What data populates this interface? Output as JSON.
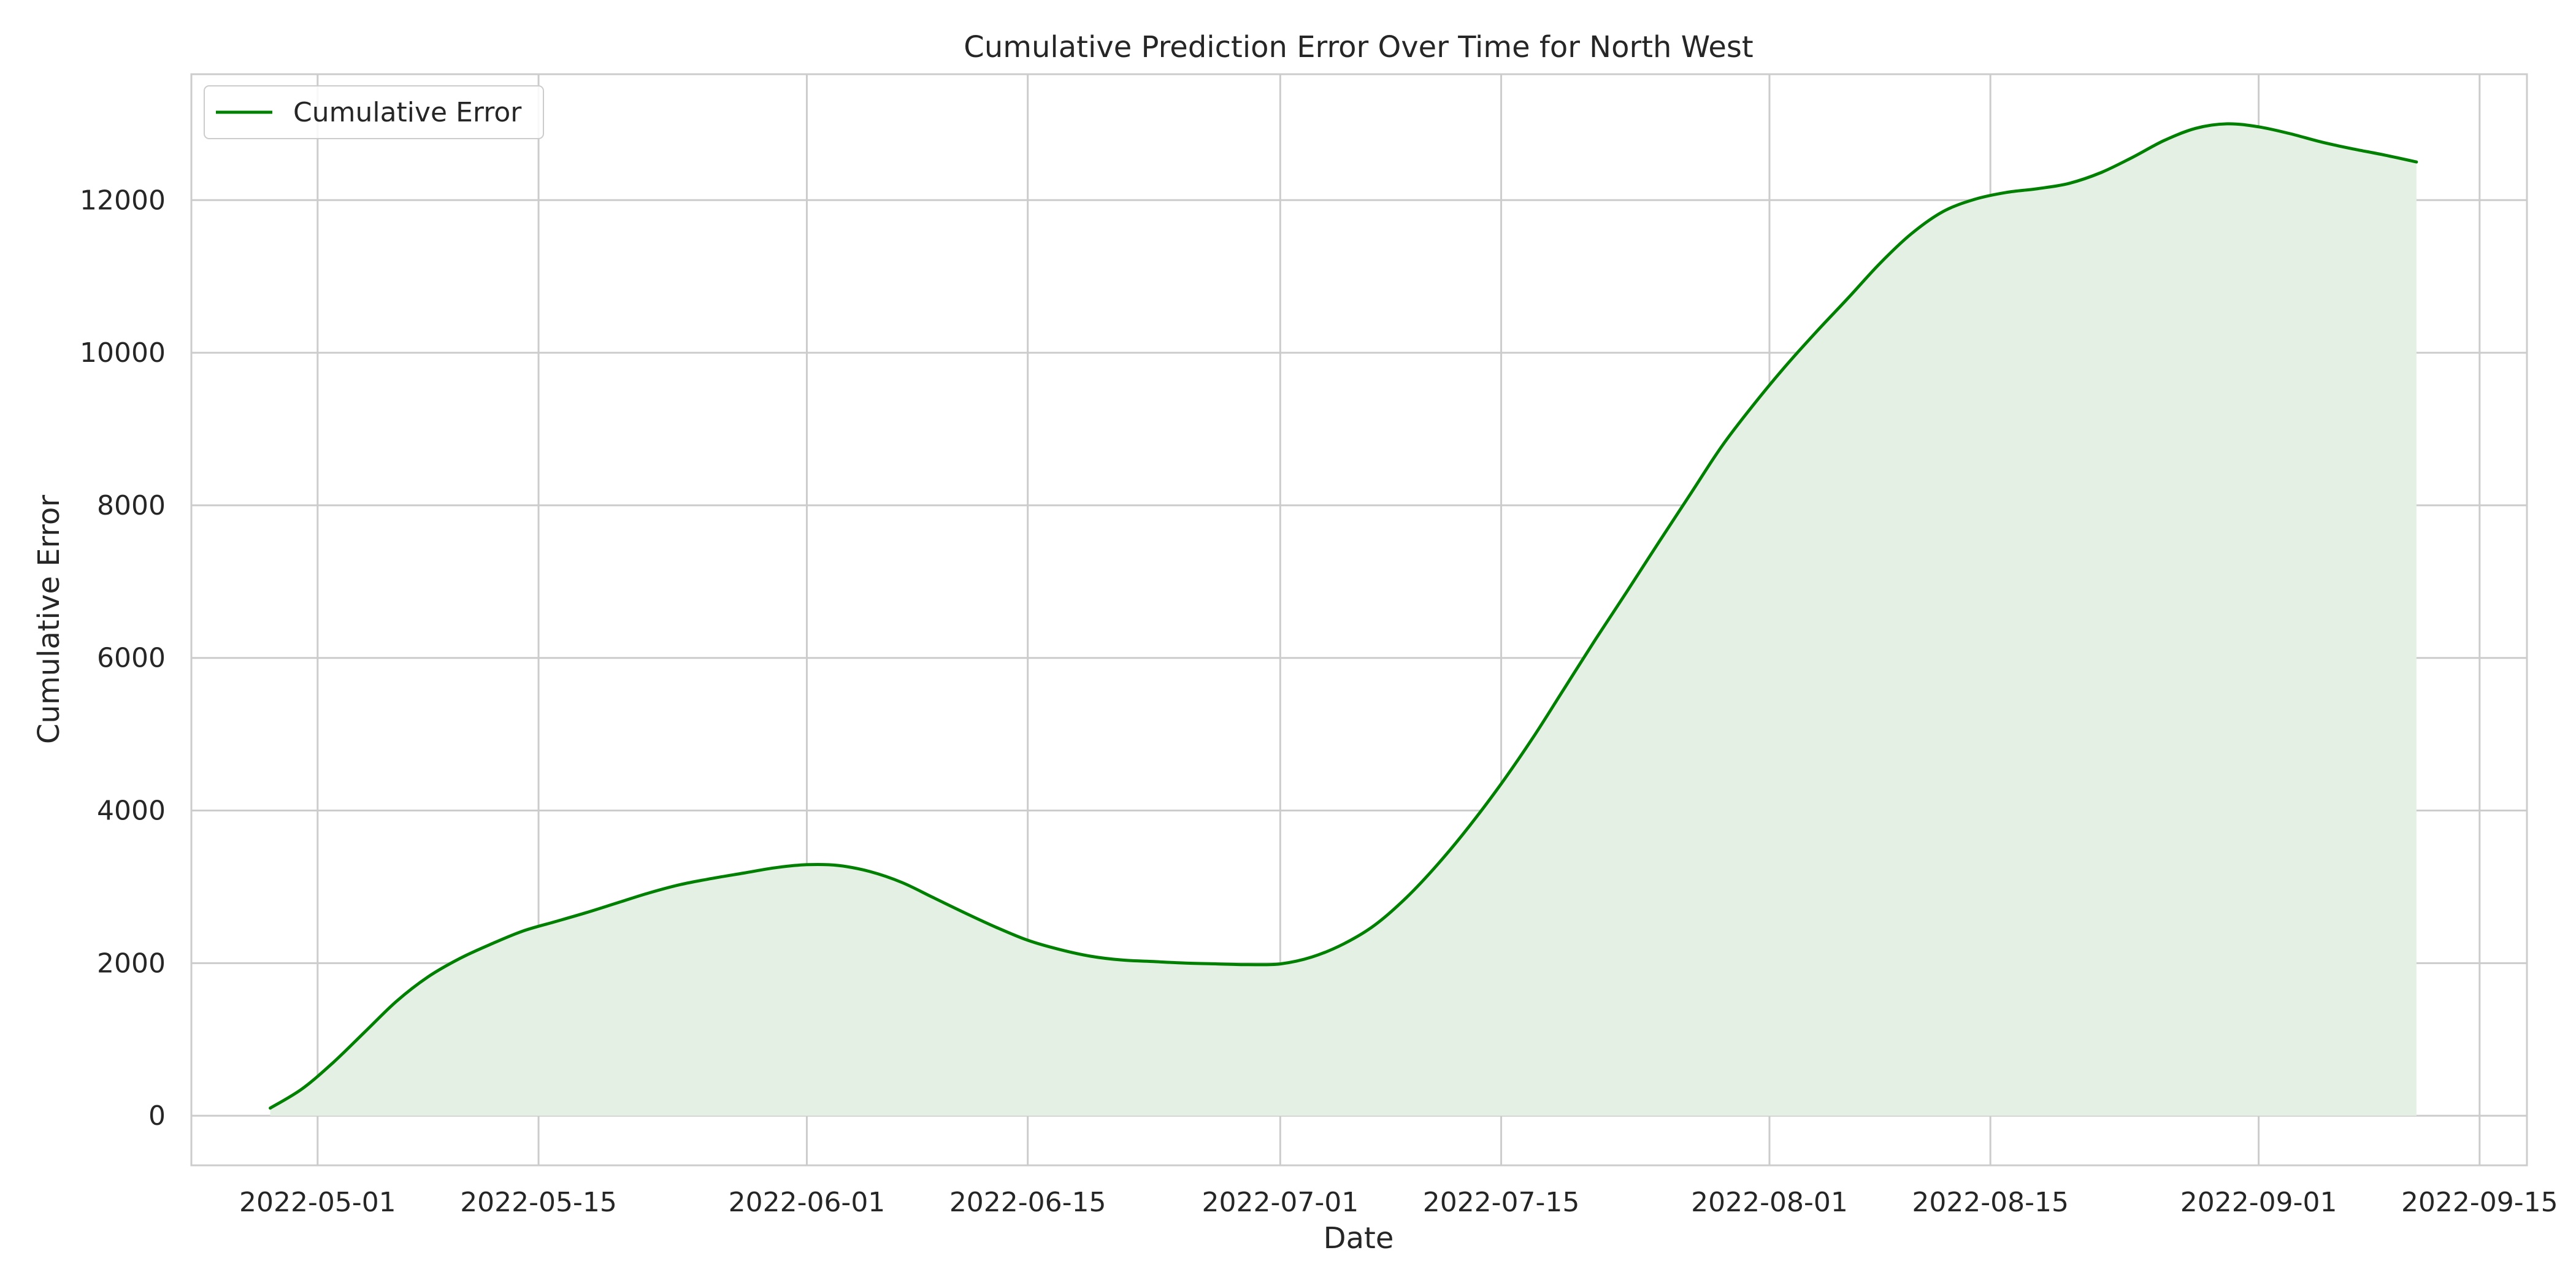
{
  "chart_data": {
    "type": "area",
    "title": "Cumulative Prediction Error Over Time for North West",
    "xlabel": "Date",
    "ylabel": "Cumulative Error",
    "xlim": [
      "2022-04-23",
      "2022-09-18"
    ],
    "ylim": [
      -650,
      13650
    ],
    "grid": true,
    "legend_position": "top-left",
    "line_color": "#008000",
    "fill_color": "#e3f0e3",
    "x_ticks": [
      "2022-05-01",
      "2022-05-15",
      "2022-06-01",
      "2022-06-15",
      "2022-07-01",
      "2022-07-15",
      "2022-08-01",
      "2022-08-15",
      "2022-09-01",
      "2022-09-15"
    ],
    "y_ticks": [
      "0",
      "2000",
      "4000",
      "6000",
      "8000",
      "10000",
      "12000"
    ],
    "series": [
      {
        "name": "Cumulative Error",
        "x": [
          "2022-04-28",
          "2022-04-30",
          "2022-05-02",
          "2022-05-04",
          "2022-05-06",
          "2022-05-08",
          "2022-05-10",
          "2022-05-12",
          "2022-05-14",
          "2022-05-16",
          "2022-05-18",
          "2022-05-20",
          "2022-05-22",
          "2022-05-24",
          "2022-05-26",
          "2022-05-28",
          "2022-05-30",
          "2022-06-01",
          "2022-06-03",
          "2022-06-05",
          "2022-06-07",
          "2022-06-09",
          "2022-06-11",
          "2022-06-13",
          "2022-06-15",
          "2022-06-17",
          "2022-06-19",
          "2022-06-21",
          "2022-06-23",
          "2022-06-25",
          "2022-06-27",
          "2022-06-29",
          "2022-07-01",
          "2022-07-03",
          "2022-07-05",
          "2022-07-07",
          "2022-07-09",
          "2022-07-11",
          "2022-07-13",
          "2022-07-15",
          "2022-07-17",
          "2022-07-19",
          "2022-07-21",
          "2022-07-23",
          "2022-07-25",
          "2022-07-27",
          "2022-07-29",
          "2022-07-31",
          "2022-08-02",
          "2022-08-04",
          "2022-08-06",
          "2022-08-08",
          "2022-08-10",
          "2022-08-12",
          "2022-08-14",
          "2022-08-16",
          "2022-08-18",
          "2022-08-20",
          "2022-08-22",
          "2022-08-24",
          "2022-08-26",
          "2022-08-28",
          "2022-08-30",
          "2022-09-01",
          "2022-09-03",
          "2022-09-05",
          "2022-09-07",
          "2022-09-09",
          "2022-09-11"
        ],
        "values": [
          100,
          350,
          700,
          1100,
          1500,
          1820,
          2060,
          2250,
          2420,
          2540,
          2660,
          2790,
          2920,
          3030,
          3110,
          3180,
          3250,
          3290,
          3280,
          3200,
          3060,
          2860,
          2660,
          2470,
          2300,
          2180,
          2090,
          2040,
          2020,
          2000,
          1990,
          1980,
          1990,
          2080,
          2250,
          2500,
          2860,
          3300,
          3800,
          4350,
          4950,
          5600,
          6250,
          6880,
          7520,
          8150,
          8780,
          9320,
          9820,
          10280,
          10720,
          11170,
          11560,
          11850,
          12010,
          12100,
          12150,
          12220,
          12360,
          12560,
          12780,
          12940,
          13000,
          12960,
          12870,
          12760,
          12670,
          12590,
          12500
        ]
      }
    ]
  }
}
